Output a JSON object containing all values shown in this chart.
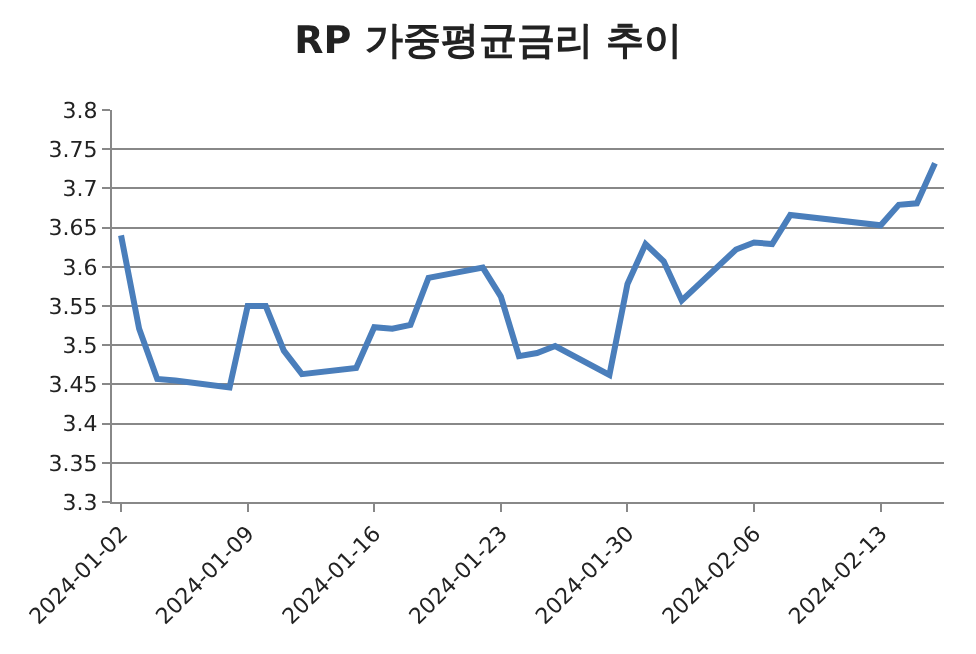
{
  "chart_data": {
    "type": "line",
    "title": "RP 가중평균금리 추이",
    "x": [
      "2024-01-02",
      "2024-01-03",
      "2024-01-04",
      "2024-01-05",
      "2024-01-08",
      "2024-01-09",
      "2024-01-10",
      "2024-01-11",
      "2024-01-12",
      "2024-01-15",
      "2024-01-16",
      "2024-01-17",
      "2024-01-18",
      "2024-01-19",
      "2024-01-22",
      "2024-01-23",
      "2024-01-24",
      "2024-01-25",
      "2024-01-26",
      "2024-01-29",
      "2024-01-30",
      "2024-01-31",
      "2024-02-01",
      "2024-02-02",
      "2024-02-05",
      "2024-02-06",
      "2024-02-07",
      "2024-02-08",
      "2024-02-13",
      "2024-02-14",
      "2024-02-15",
      "2024-02-16"
    ],
    "series": [
      {
        "color": "#4a7ebb",
        "values": [
          3.64,
          3.521,
          3.457,
          3.455,
          3.446,
          3.55,
          3.55,
          3.493,
          3.463,
          3.471,
          3.523,
          3.521,
          3.526,
          3.586,
          3.599,
          3.562,
          3.486,
          3.49,
          3.499,
          3.462,
          3.578,
          3.629,
          3.607,
          3.557,
          3.622,
          3.631,
          3.629,
          3.666,
          3.653,
          3.679,
          3.681,
          3.732
        ]
      }
    ],
    "xlim": [
      "2024-01-01T12:00",
      "2024-02-16T12:00"
    ],
    "xticks": [
      "2024-01-02",
      "2024-01-09",
      "2024-01-16",
      "2024-01-23",
      "2024-01-30",
      "2024-02-06",
      "2024-02-13"
    ],
    "ylim": [
      3.3,
      3.8
    ],
    "yticks": [
      3.3,
      3.35,
      3.4,
      3.45,
      3.5,
      3.55,
      3.6,
      3.65,
      3.7,
      3.75,
      3.8
    ],
    "grid": "y",
    "marker": "none",
    "line_style": "solid"
  }
}
